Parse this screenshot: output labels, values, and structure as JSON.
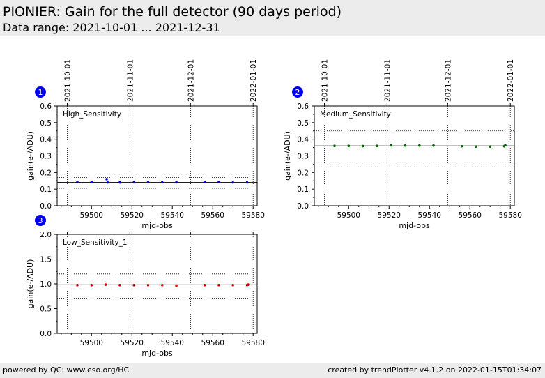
{
  "header": {
    "title": "PIONIER: Gain for the full detector (90 days period)",
    "subtitle": "Data range: 2021-10-01 ... 2021-12-31"
  },
  "footer": {
    "left": "powered by QC: www.eso.org/HC",
    "right": "created by trendPlotter v4.1.2 on 2022-01-15T01:34:07"
  },
  "chart_data": [
    {
      "type": "scatter",
      "panel_number": "1",
      "label": "High_Sensitivity",
      "xlabel": "mjd-obs",
      "ylabel": "gain(e-/ADU)",
      "xlim": [
        59483,
        59582
      ],
      "ylim": [
        0,
        0.6
      ],
      "yticks": [
        0.0,
        0.1,
        0.2,
        0.3,
        0.4,
        0.5,
        0.6
      ],
      "xticks": [
        59500,
        59520,
        59540,
        59560,
        59580
      ],
      "date_ticks": [
        {
          "mjd": 59488,
          "label": "2021-10-01"
        },
        {
          "mjd": 59519,
          "label": "2021-11-01"
        },
        {
          "mjd": 59549,
          "label": "2021-12-01"
        },
        {
          "mjd": 59580,
          "label": "2022-01-01"
        }
      ],
      "reference_line": 0.14,
      "limit_lines": [
        0.105,
        0.17
      ],
      "color": "#0000cc",
      "x": [
        59493,
        59500,
        59507.5,
        59508,
        59514,
        59521,
        59528,
        59535,
        59542,
        59556,
        59563,
        59570,
        59577
      ],
      "y": [
        0.142,
        0.142,
        0.16,
        0.14,
        0.14,
        0.141,
        0.141,
        0.141,
        0.141,
        0.142,
        0.142,
        0.14,
        0.14
      ]
    },
    {
      "type": "scatter",
      "panel_number": "2",
      "label": "Medium_Sensitivity",
      "xlabel": "mjd-obs",
      "ylabel": "gain(e-/ADU)",
      "xlim": [
        59483,
        59582
      ],
      "ylim": [
        0,
        0.6
      ],
      "yticks": [
        0.0,
        0.1,
        0.2,
        0.3,
        0.4,
        0.5,
        0.6
      ],
      "xticks": [
        59500,
        59520,
        59540,
        59560,
        59580
      ],
      "date_ticks": [
        {
          "mjd": 59488,
          "label": "2021-10-01"
        },
        {
          "mjd": 59519,
          "label": "2021-11-01"
        },
        {
          "mjd": 59549,
          "label": "2021-12-01"
        },
        {
          "mjd": 59580,
          "label": "2022-01-01"
        }
      ],
      "reference_line": 0.36,
      "limit_lines": [
        0.245,
        0.45
      ],
      "color": "#006400",
      "x": [
        59493,
        59500,
        59507,
        59514,
        59521,
        59528,
        59535,
        59542,
        59556,
        59563,
        59570,
        59577,
        59577.5
      ],
      "y": [
        0.36,
        0.36,
        0.359,
        0.36,
        0.363,
        0.362,
        0.362,
        0.362,
        0.358,
        0.356,
        0.356,
        0.358,
        0.364
      ]
    },
    {
      "type": "scatter",
      "panel_number": "3",
      "label": "Low_Sensitivity_1",
      "xlabel": "mjd-obs",
      "ylabel": "gain(e-/ADU)",
      "xlim": [
        59483,
        59582
      ],
      "ylim": [
        0,
        2.0
      ],
      "yticks": [
        0.0,
        0.5,
        1.0,
        1.5,
        2.0
      ],
      "xticks": [
        59500,
        59520,
        59540,
        59560,
        59580
      ],
      "date_ticks": [
        {
          "mjd": 59488,
          "label": ""
        },
        {
          "mjd": 59519,
          "label": ""
        },
        {
          "mjd": 59549,
          "label": ""
        },
        {
          "mjd": 59580,
          "label": ""
        }
      ],
      "reference_line": 0.98,
      "limit_lines": [
        0.7,
        1.2
      ],
      "color": "#cc0000",
      "x": [
        59493,
        59500,
        59507,
        59514,
        59521,
        59528,
        59535,
        59542,
        59556,
        59563,
        59570,
        59577,
        59577.5
      ],
      "y": [
        0.975,
        0.975,
        0.985,
        0.975,
        0.975,
        0.975,
        0.975,
        0.965,
        0.975,
        0.975,
        0.975,
        0.975,
        0.985
      ]
    }
  ]
}
